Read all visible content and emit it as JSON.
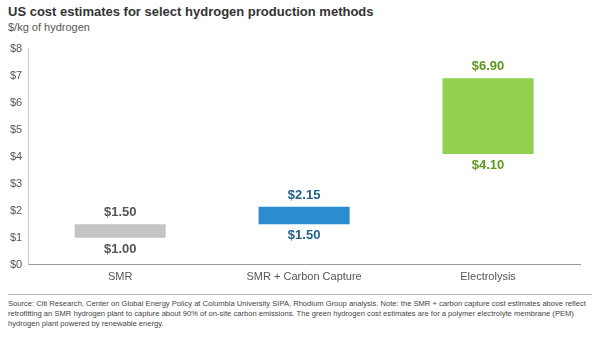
{
  "chart_data": {
    "type": "bar",
    "title": "US cost estimates for select hydrogen production methods",
    "subtitle": "$/kg of hydrogen",
    "categories": [
      "SMR",
      "SMR + Carbon Capture",
      "Electrolysis"
    ],
    "values": [
      [
        1.0,
        1.5
      ],
      [
        1.5,
        2.15
      ],
      [
        4.1,
        6.9
      ]
    ],
    "value_labels": [
      [
        "$1.00",
        "$1.50"
      ],
      [
        "$1.50",
        "$2.15"
      ],
      [
        "$4.10",
        "$6.90"
      ]
    ],
    "colors": [
      "#c4c4c4",
      "#2b8ccf",
      "#92d050"
    ],
    "ylim": [
      0,
      8
    ],
    "yticks": [
      {
        "value": 0,
        "label": "$0"
      },
      {
        "value": 1,
        "label": "$1"
      },
      {
        "value": 2,
        "label": "$2"
      },
      {
        "value": 3,
        "label": "$3"
      },
      {
        "value": 4,
        "label": "$4"
      },
      {
        "value": 5,
        "label": "$5"
      },
      {
        "value": 6,
        "label": "$6"
      },
      {
        "value": 7,
        "label": "$7"
      },
      {
        "value": 8,
        "label": "$8"
      }
    ],
    "grid": false,
    "data_labels": true,
    "footnote": "Source: Citi Research, Center on Global Energy Policy at Columbia University SIPA, Rhodium Group analysis. Note: the SMR + carbon capture cost estimates above reflect retrofitting an SMR hydrogen plant to capture about 90% of on-site carbon emissions. The green hydrogen cost estimates are for a polymer electrolyte membrane (PEM) hydrogen plant powered by renewable energy."
  }
}
